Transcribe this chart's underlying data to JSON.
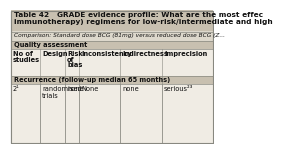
{
  "title_line1": "Table 42   GRADE evidence profile: What are the most effec",
  "title_line2": "immunotherapy) regimens for low-risk/intermediate and high",
  "comparison": "Comparison: Standard dose BCG (81mg) versus reduced dose BCG (Z...",
  "section_quality": "Quality assessment",
  "col_headers_line1": [
    "No of",
    "Design",
    "Risk",
    "Inconsistency",
    "Indirectness",
    "Imprecision"
  ],
  "col_headers_line2": [
    "studies",
    "",
    "of",
    "",
    "",
    ""
  ],
  "col_headers_line3": [
    "",
    "",
    "bias",
    "",
    "",
    ""
  ],
  "section_recurrence": "Recurrence (follow-up median 65 months)",
  "row_col0": "2¹",
  "row_col1a": "randomised",
  "row_col1b": "trials",
  "row_col2": "none",
  "row_col3": "None",
  "row_col4": "none",
  "row_col5": "serious²³",
  "bg_color": "#ddd8cc",
  "white_cell": "#f0ece4",
  "title_bg": "#c8c0b0",
  "section_bg": "#c8c0b0",
  "border_color": "#888880",
  "text_color": "#111111",
  "title_fontsize": 5.3,
  "body_fontsize": 4.8,
  "header_fontsize": 4.8
}
